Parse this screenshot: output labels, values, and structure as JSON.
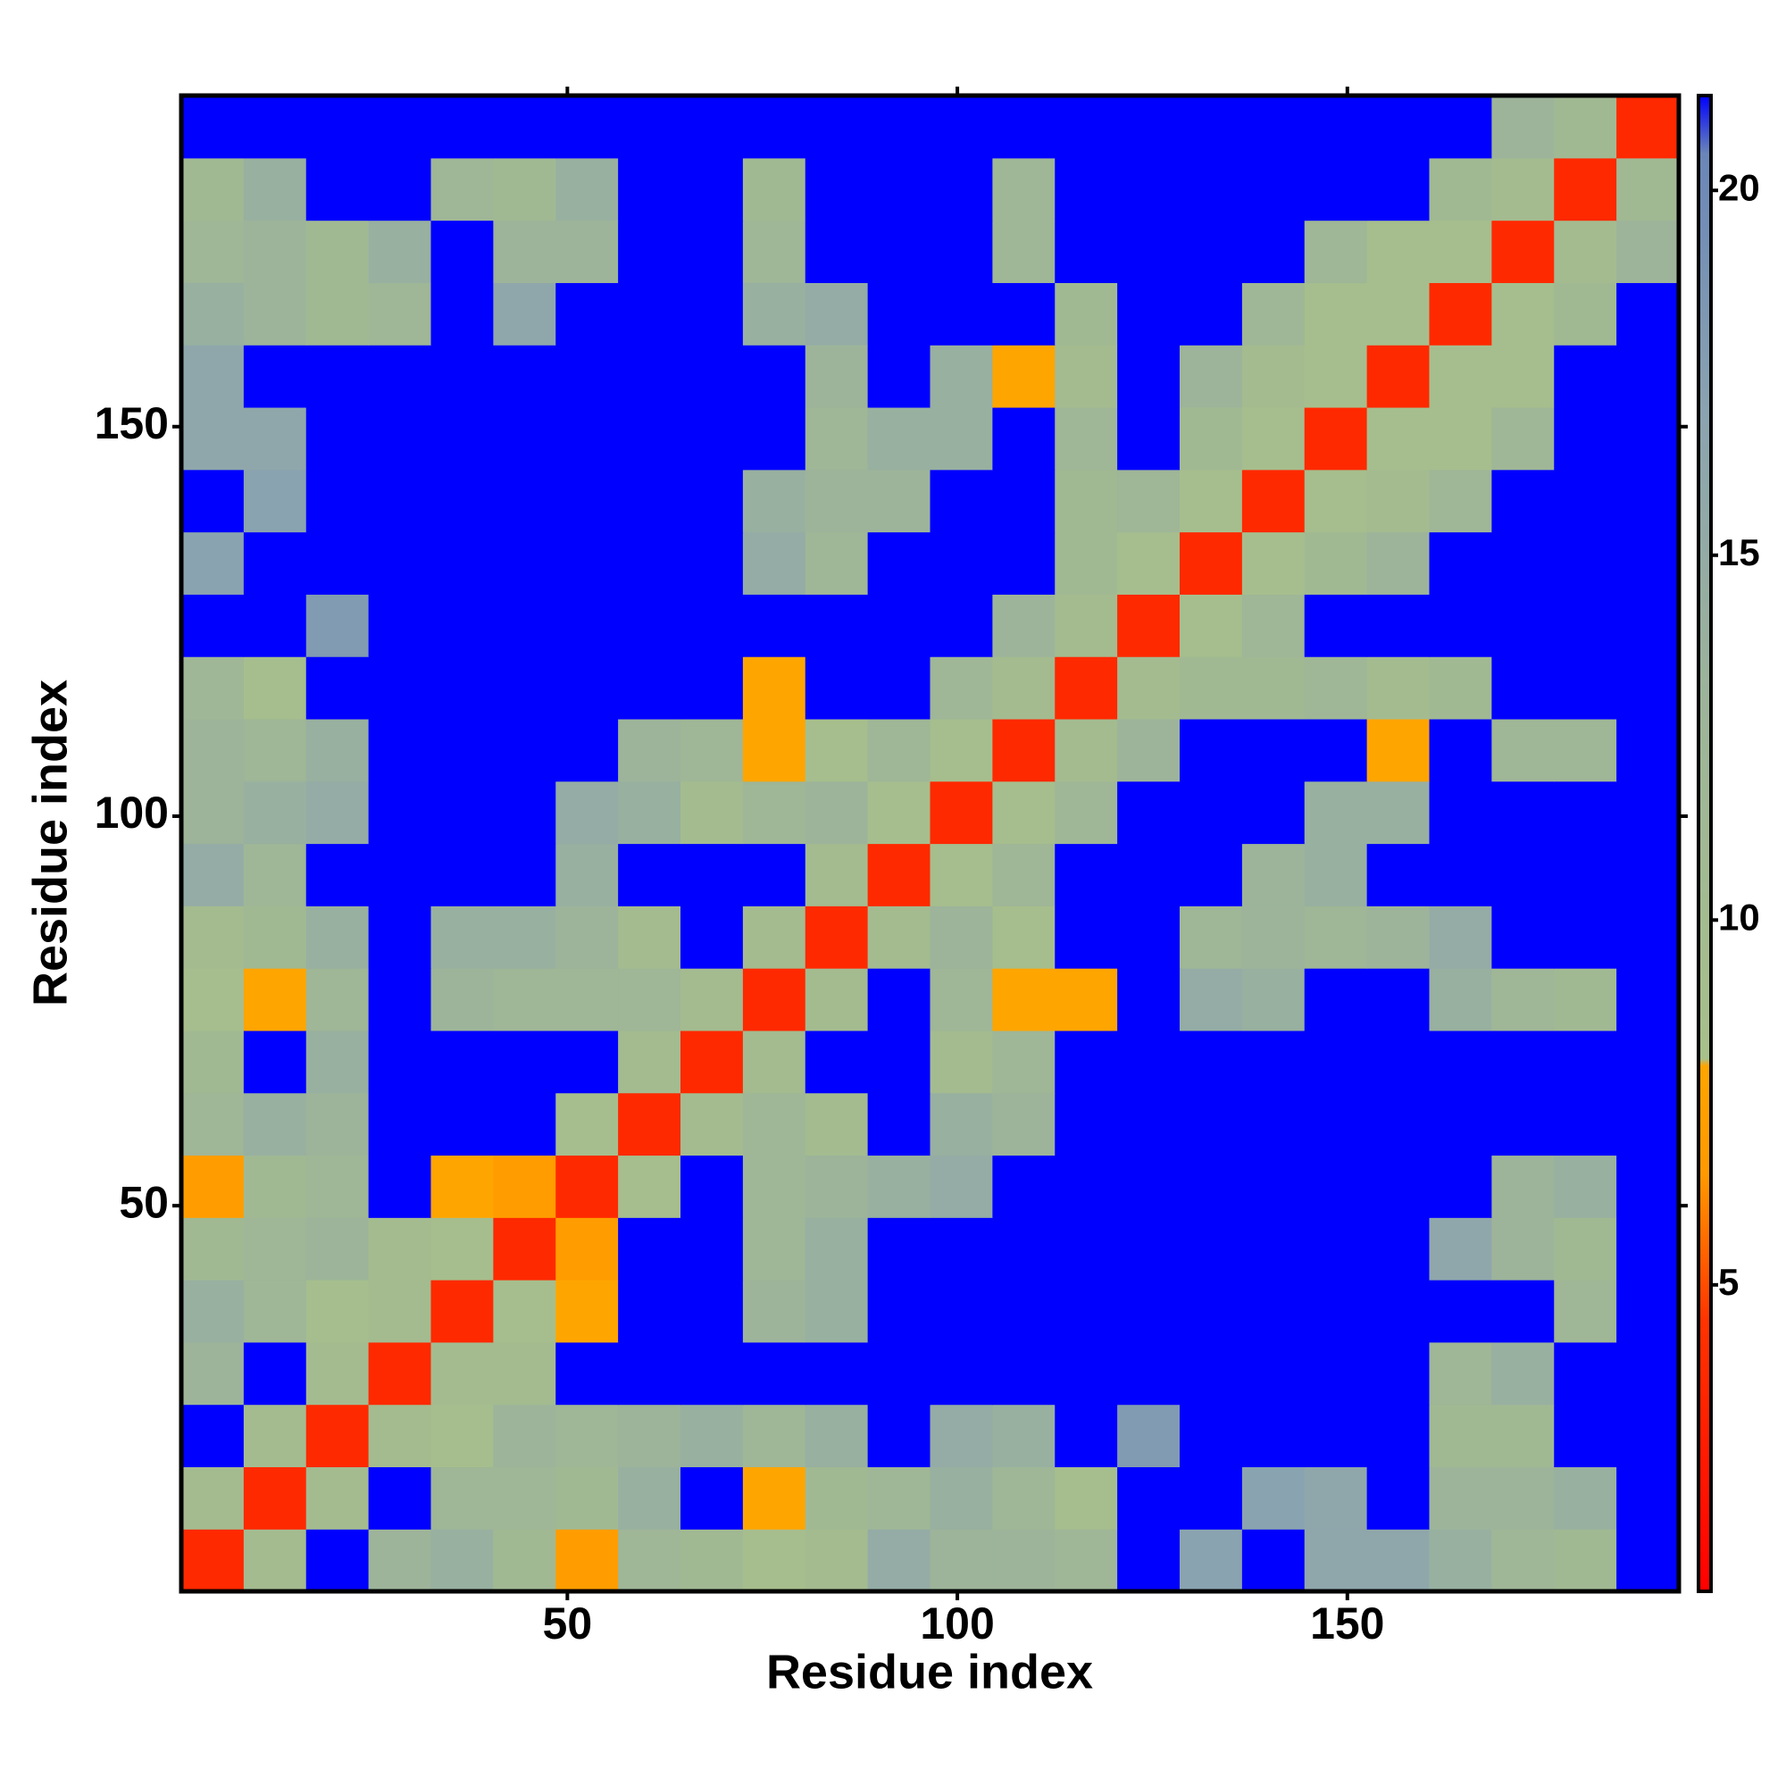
{
  "chart_data": {
    "type": "heatmap",
    "x_label": "Residue index",
    "y_label": "Residue index",
    "x": [
      4.5,
      12.5,
      20.5,
      28.5,
      36.5,
      44.5,
      52.5,
      60.5,
      68.5,
      76.5,
      84.5,
      92.5,
      100.5,
      108.5,
      116.5,
      124.5,
      132.5,
      140.5,
      148.5,
      156.5,
      164.5,
      172.5,
      180.5,
      188.5
    ],
    "y": [
      4.5,
      12.5,
      20.5,
      28.5,
      36.5,
      44.5,
      52.5,
      60.5,
      68.5,
      76.5,
      84.5,
      92.5,
      100.5,
      108.5,
      116.5,
      124.5,
      132.5,
      140.5,
      148.5,
      156.5,
      164.5,
      172.5,
      180.5,
      188.5
    ],
    "z": [
      [
        3.8,
        10,
        21.3,
        13,
        14,
        11,
        7,
        12,
        11,
        9,
        10,
        15,
        13,
        13,
        12,
        21.3,
        17,
        21.3,
        16,
        16,
        14,
        12,
        11,
        21.3
      ],
      [
        10,
        3.8,
        10,
        21.3,
        12,
        12,
        11,
        14,
        21.3,
        8,
        11,
        12,
        14,
        12,
        9,
        21.3,
        21.3,
        17,
        16,
        21.3,
        13,
        13,
        14,
        21.3
      ],
      [
        21.3,
        10,
        3.8,
        10,
        9,
        13,
        12,
        13,
        14,
        12,
        14,
        21.3,
        15,
        14,
        21.3,
        18,
        21.3,
        21.3,
        21.3,
        21.3,
        11,
        11,
        21.3,
        21.3
      ],
      [
        13,
        21.3,
        10,
        3.8,
        10,
        10,
        21.3,
        21.3,
        21.3,
        21.3,
        21.3,
        21.3,
        21.3,
        21.3,
        21.3,
        21.3,
        21.3,
        21.3,
        21.3,
        21.3,
        12,
        14,
        21.3,
        21.3
      ],
      [
        14,
        12,
        9,
        10,
        3.8,
        9,
        8,
        21.3,
        21.3,
        13,
        14,
        21.3,
        21.3,
        21.3,
        21.3,
        21.3,
        21.3,
        21.3,
        21.3,
        21.3,
        21.3,
        21.3,
        12,
        21.3
      ],
      [
        11,
        12,
        13,
        10,
        9,
        3.8,
        7,
        21.3,
        21.3,
        12,
        14,
        21.3,
        21.3,
        21.3,
        21.3,
        21.3,
        21.3,
        21.3,
        21.3,
        21.3,
        16,
        13,
        11,
        21.3
      ],
      [
        7,
        11,
        12,
        21.3,
        8,
        7,
        3.8,
        9,
        21.3,
        12,
        13,
        14,
        15,
        21.3,
        21.3,
        21.3,
        21.3,
        21.3,
        21.3,
        21.3,
        21.3,
        13,
        14,
        21.3
      ],
      [
        12,
        14,
        13,
        21.3,
        21.3,
        21.3,
        9,
        3.8,
        10,
        12,
        10,
        21.3,
        14,
        13,
        21.3,
        21.3,
        21.3,
        21.3,
        21.3,
        21.3,
        21.3,
        21.3,
        21.3,
        21.3
      ],
      [
        11,
        21.3,
        14,
        21.3,
        21.3,
        21.3,
        21.3,
        10,
        3.8,
        10,
        21.3,
        21.3,
        10,
        12,
        21.3,
        21.3,
        21.3,
        21.3,
        21.3,
        21.3,
        21.3,
        21.3,
        21.3,
        21.3
      ],
      [
        9,
        8,
        12,
        21.3,
        13,
        12,
        12,
        12,
        10,
        3.8,
        10,
        21.3,
        12,
        8,
        8,
        21.3,
        15,
        14,
        21.3,
        21.3,
        14,
        12,
        11,
        21.3
      ],
      [
        10,
        11,
        14,
        21.3,
        14,
        14,
        13,
        10,
        21.3,
        10,
        3.8,
        10,
        13,
        9,
        21.3,
        21.3,
        12,
        13,
        12,
        13,
        15,
        21.3,
        21.3,
        21.3
      ],
      [
        15,
        12,
        21.3,
        21.3,
        21.3,
        21.3,
        14,
        21.3,
        21.3,
        21.3,
        10,
        3.8,
        9,
        12,
        21.3,
        21.3,
        21.3,
        13,
        14,
        21.3,
        21.3,
        21.3,
        21.3,
        21.3
      ],
      [
        13,
        14,
        15,
        21.3,
        21.3,
        21.3,
        15,
        14,
        10,
        12,
        13,
        9,
        3.8,
        9,
        12,
        21.3,
        21.3,
        21.3,
        14,
        14,
        21.3,
        21.3,
        21.3,
        21.3
      ],
      [
        13,
        12,
        14,
        21.3,
        21.3,
        21.3,
        21.3,
        13,
        12,
        8,
        9,
        12,
        9,
        3.8,
        10,
        13,
        21.3,
        21.3,
        21.3,
        8,
        21.3,
        12,
        12,
        21.3
      ],
      [
        12,
        9,
        21.3,
        21.3,
        21.3,
        21.3,
        21.3,
        21.3,
        21.3,
        8,
        21.3,
        21.3,
        12,
        10,
        3.8,
        10,
        11,
        11,
        12,
        10,
        11,
        21.3,
        21.3,
        21.3
      ],
      [
        21.3,
        21.3,
        18,
        21.3,
        21.3,
        21.3,
        21.3,
        21.3,
        21.3,
        21.3,
        21.3,
        21.3,
        21.3,
        13,
        10,
        3.8,
        9,
        12,
        21.3,
        21.3,
        21.3,
        21.3,
        21.3,
        21.3
      ],
      [
        17,
        21.3,
        21.3,
        21.3,
        21.3,
        21.3,
        21.3,
        21.3,
        21.3,
        15,
        12,
        21.3,
        21.3,
        21.3,
        11,
        9,
        3.8,
        9,
        11,
        13,
        21.3,
        21.3,
        21.3,
        21.3
      ],
      [
        21.3,
        17,
        21.3,
        21.3,
        21.3,
        21.3,
        21.3,
        21.3,
        21.3,
        14,
        13,
        13,
        21.3,
        21.3,
        11,
        12,
        9,
        3.8,
        9,
        10,
        12,
        21.3,
        21.3,
        21.3
      ],
      [
        16,
        16,
        21.3,
        21.3,
        21.3,
        21.3,
        21.3,
        21.3,
        21.3,
        21.3,
        12,
        14,
        14,
        21.3,
        12,
        21.3,
        11,
        9,
        3.8,
        9,
        9,
        12,
        21.3,
        21.3
      ],
      [
        16,
        21.3,
        21.3,
        21.3,
        21.3,
        21.3,
        21.3,
        21.3,
        21.3,
        21.3,
        13,
        21.3,
        14,
        8,
        10,
        21.3,
        13,
        10,
        9,
        3.8,
        9,
        9,
        21.3,
        21.3
      ],
      [
        14,
        13,
        11,
        12,
        21.3,
        16,
        21.3,
        21.3,
        21.3,
        14,
        15,
        21.3,
        21.3,
        21.3,
        11,
        21.3,
        21.3,
        12,
        9,
        9,
        3.8,
        9,
        11,
        21.3
      ],
      [
        12,
        13,
        11,
        14,
        21.3,
        13,
        13,
        21.3,
        21.3,
        12,
        21.3,
        21.3,
        21.3,
        12,
        21.3,
        21.3,
        21.3,
        21.3,
        12,
        9,
        9,
        3.8,
        10,
        13
      ],
      [
        11,
        14,
        21.3,
        21.3,
        12,
        11,
        14,
        21.3,
        21.3,
        11,
        21.3,
        21.3,
        21.3,
        12,
        21.3,
        21.3,
        21.3,
        21.3,
        21.3,
        21.3,
        11,
        10,
        3.8,
        11
      ],
      [
        21.3,
        21.3,
        21.3,
        21.3,
        21.3,
        21.3,
        21.3,
        21.3,
        21.3,
        21.3,
        21.3,
        21.3,
        21.3,
        21.3,
        21.3,
        21.3,
        21.3,
        21.3,
        21.3,
        21.3,
        21.3,
        13,
        11,
        3.8
      ]
    ],
    "xlim": [
      0.5,
      192.5
    ],
    "ylim": [
      0.5,
      192.5
    ],
    "xticks": [
      50,
      100,
      150
    ],
    "yticks": [
      50,
      100,
      150
    ],
    "clim": [
      0.8,
      21.3
    ],
    "cticks": [
      5,
      10,
      15,
      20
    ],
    "colorscale": [
      {
        "value": 0.8,
        "color": "#ff0000"
      },
      {
        "value": 4.5,
        "color": "#ff3300"
      },
      {
        "value": 6.5,
        "color": "#ff9900"
      },
      {
        "value": 8,
        "color": "#ffa500"
      },
      {
        "value": 8.1,
        "color": "#a8c08a"
      },
      {
        "value": 13,
        "color": "#9db49a"
      },
      {
        "value": 17,
        "color": "#8aa3b0"
      },
      {
        "value": 20.5,
        "color": "#6a86b8"
      },
      {
        "value": 21.3,
        "color": "#0000ff"
      }
    ]
  }
}
